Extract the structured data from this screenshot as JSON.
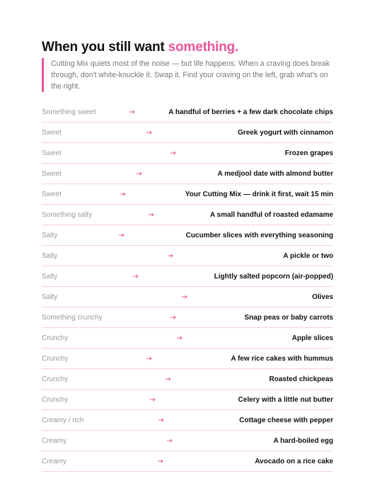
{
  "header": {
    "title": "When you still want",
    "title_highlight": "something.",
    "intro": "Cutting Mix quiets most of the noise — but life happens. When a craving does break through, don't white-knuckle it. Swap it. Find your craving on the left, grab what's on the right."
  },
  "table": {
    "rows": [
      [
        "Something sweet",
        "A handful of berries + a few dark chocolate chips"
      ],
      [
        "Sweet",
        "Greek yogurt with cinnamon"
      ],
      [
        "Sweet",
        "Frozen grapes"
      ],
      [
        "Sweet",
        "A medjool date with almond butter"
      ],
      [
        "Sweet",
        "Your Cutting Mix — drink it first, wait 15 min"
      ],
      [
        "Something salty",
        "A small handful of roasted edamame"
      ],
      [
        "Salty",
        "Cucumber slices with everything seasoning"
      ],
      [
        "Salty",
        "A pickle or two"
      ],
      [
        "Salty",
        "Lightly salted popcorn (air-popped)"
      ],
      [
        "Salty",
        "Olives"
      ],
      [
        "Something crunchy",
        "Snap peas or baby carrots"
      ],
      [
        "Crunchy",
        "Apple slices"
      ],
      [
        "Crunchy",
        "A few rice cakes with hummus"
      ],
      [
        "Crunchy",
        "Roasted chickpeas"
      ],
      [
        "Crunchy",
        "Celery with a little nut butter"
      ],
      [
        "Creamy / rich",
        "Cottage cheese with pepper"
      ],
      [
        "Creamy",
        "A hard-boiled egg"
      ],
      [
        "Creamy",
        "Avocado on a rice cake"
      ]
    ]
  }
}
